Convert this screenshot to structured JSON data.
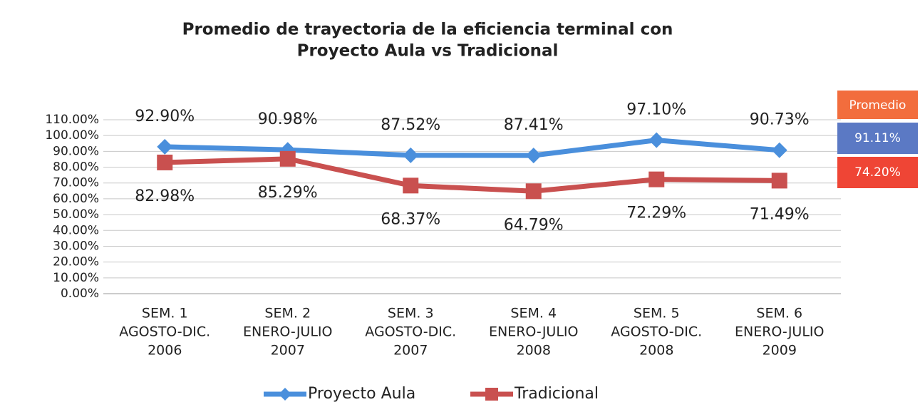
{
  "chart_data": {
    "type": "line",
    "title": [
      "Promedio de trayectoria de la eficiencia terminal con",
      "Proyecto Aula vs Tradicional"
    ],
    "categories": [
      [
        "SEM. 1",
        "AGOSTO-DIC.",
        "2006"
      ],
      [
        "SEM. 2",
        "ENERO-JULIO",
        "2007"
      ],
      [
        "SEM. 3",
        "AGOSTO-DIC.",
        "2007"
      ],
      [
        "SEM. 4",
        "ENERO-JULIO",
        "2008"
      ],
      [
        "SEM. 5",
        "AGOSTO-DIC.",
        "2008"
      ],
      [
        "SEM. 6",
        "ENERO-JULIO",
        "2009"
      ]
    ],
    "series": [
      {
        "name": "Proyecto Aula",
        "color": "#4a8fdc",
        "marker": "diamond",
        "values": [
          92.9,
          90.98,
          87.52,
          87.41,
          97.1,
          90.73
        ],
        "value_labels": [
          "92.90%",
          "90.98%",
          "87.52%",
          "87.41%",
          "97.10%",
          "90.73%"
        ]
      },
      {
        "name": "Tradicional",
        "color": "#c9504f",
        "marker": "square",
        "values": [
          82.98,
          85.29,
          68.37,
          64.79,
          72.29,
          71.49
        ],
        "value_labels": [
          "82.98%",
          "85.29%",
          "68.37%",
          "64.79%",
          "72.29%",
          "71.49%"
        ]
      }
    ],
    "ylim": [
      0,
      110
    ],
    "yticks": [
      {
        "value": 0,
        "label": "0.00%"
      },
      {
        "value": 10,
        "label": "10.00%"
      },
      {
        "value": 20,
        "label": "20.00%"
      },
      {
        "value": 30,
        "label": "30.00%"
      },
      {
        "value": 40,
        "label": "40.00%"
      },
      {
        "value": 50,
        "label": "50.00%"
      },
      {
        "value": 60,
        "label": "60.00%"
      },
      {
        "value": 70,
        "label": "70.00%"
      },
      {
        "value": 80,
        "label": "80.00%"
      },
      {
        "value": 90,
        "label": "90.00%"
      },
      {
        "value": 100,
        "label": "100.00%"
      },
      {
        "value": 110,
        "label": "110.00%"
      }
    ],
    "grid": true,
    "legend": "bottom",
    "averages": {
      "title": "Promedio",
      "title_color": "#f26d3d",
      "values": [
        91.11,
        74.2
      ],
      "value_labels": [
        "91.11%",
        "74.20%"
      ],
      "colors": [
        "#5b79c4",
        "#ef4535"
      ]
    }
  }
}
